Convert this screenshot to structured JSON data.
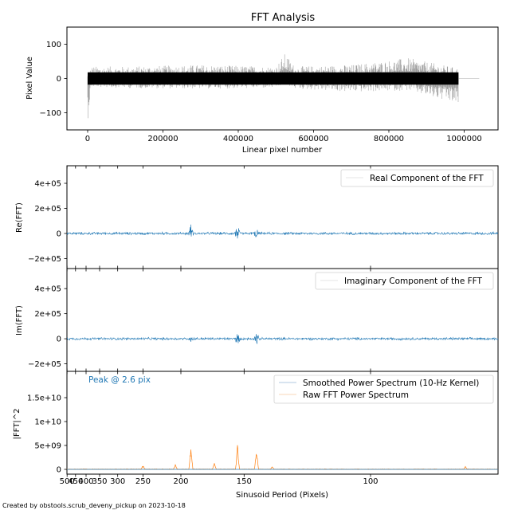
{
  "footer": "Created by obstools.scrub_deveny_pickup on 2023-10-18",
  "colors": {
    "trace": "#000000",
    "blue": "#1f77b4",
    "orange": "#ff7f0e",
    "legend_faint": "#f2c9a6"
  },
  "chart_data": [
    {
      "id": "pixel-panel",
      "type": "line",
      "title": "FFT Analysis",
      "xlabel": "Linear pixel number",
      "ylabel": "Pixel Value",
      "xlim": [
        -55000,
        1090000
      ],
      "ylim": [
        -150,
        150
      ],
      "xticks": [
        0,
        200000,
        400000,
        600000,
        800000,
        1000000
      ],
      "xtick_labels": [
        "0",
        "200000",
        "400000",
        "600000",
        "800000",
        "1000000"
      ],
      "yticks": [
        -100,
        0,
        100
      ],
      "ytick_labels": [
        "−100",
        "0",
        "100"
      ],
      "series": [
        {
          "color": "#000000",
          "x_range": [
            0,
            985000
          ],
          "envelope": [
            {
              "x": 0,
              "lo": -130,
              "hi": 10
            },
            {
              "x": 10000,
              "lo": -25,
              "hi": 35
            },
            {
              "x": 100000,
              "lo": -28,
              "hi": 35
            },
            {
              "x": 300000,
              "lo": -30,
              "hi": 40
            },
            {
              "x": 500000,
              "lo": -28,
              "hi": 35
            },
            {
              "x": 525000,
              "lo": -15,
              "hi": 75
            },
            {
              "x": 550000,
              "lo": -30,
              "hi": 35
            },
            {
              "x": 700000,
              "lo": -40,
              "hi": 40
            },
            {
              "x": 850000,
              "lo": -35,
              "hi": 60
            },
            {
              "x": 985000,
              "lo": -80,
              "hi": 30
            }
          ]
        },
        {
          "color": "#c8c8c8",
          "x_range": [
            985000,
            1040000
          ],
          "value": 0
        }
      ]
    },
    {
      "id": "real-panel",
      "type": "line",
      "ylabel": "Re(FFT)",
      "ylim": [
        -280000,
        540000
      ],
      "yticks": [
        -200000,
        0,
        200000,
        400000
      ],
      "ytick_labels": [
        "−2e+05",
        "0",
        "2e+05",
        "4e+05"
      ],
      "legend": [
        "Real Component of the FFT"
      ],
      "legend_position": "top-right",
      "series": [
        {
          "name": "Real Component of the FFT",
          "color": "#1f77b4",
          "spikes": [
            {
              "period": 190,
              "amp": 70000
            },
            {
              "period": 154,
              "amp": 60000
            },
            {
              "period": 143,
              "amp": 55000
            }
          ],
          "noise_amp": 8000
        }
      ]
    },
    {
      "id": "imag-panel",
      "type": "line",
      "ylabel": "Im(FFT)",
      "ylim": [
        -260000,
        560000
      ],
      "yticks": [
        -200000,
        0,
        200000,
        400000
      ],
      "ytick_labels": [
        "−2e+05",
        "0",
        "2e+05",
        "4e+05"
      ],
      "legend": [
        "Imaginary Component of the FFT"
      ],
      "legend_position": "top-right",
      "series": [
        {
          "name": "Imaginary Component of the FFT",
          "color": "#1f77b4",
          "spikes": [
            {
              "period": 190,
              "amp": 55000
            },
            {
              "period": 154,
              "amp": 45000
            },
            {
              "period": 143,
              "amp": 50000
            }
          ],
          "noise_amp": 8000
        }
      ]
    },
    {
      "id": "power-panel",
      "type": "line",
      "xlabel": "Sinusoid Period (Pixels)",
      "ylabel": "|FFT|^2",
      "ylim": [
        -1000000000,
        20500000000
      ],
      "yticks": [
        0,
        5000000000,
        10000000000,
        15000000000
      ],
      "ytick_labels": [
        "0",
        "5e+09",
        "1e+10",
        "1.5e+10"
      ],
      "xtick_periods": [
        500,
        450,
        400,
        350,
        300,
        250,
        200,
        150,
        100
      ],
      "xtick_labels": [
        "500",
        "450",
        "400",
        "350",
        "300",
        "250",
        "200",
        "150",
        "100"
      ],
      "annotation": "Peak @ 2.6 pix",
      "legend": [
        "Smoothed Power Spectrum (10-Hz Kernel)",
        "Raw FFT Power Spectrum"
      ],
      "legend_position": "top-right",
      "series": [
        {
          "name": "Smoothed Power Spectrum (10-Hz Kernel)",
          "color": "#1f77b4",
          "value": 0
        },
        {
          "name": "Raw FFT Power Spectrum",
          "color": "#ff7f0e",
          "peaks": [
            {
              "period": 250,
              "value": 900000000
            },
            {
              "period": 206,
              "value": 1100000000
            },
            {
              "period": 190,
              "value": 5200000000
            },
            {
              "period": 170,
              "value": 1300000000
            },
            {
              "period": 154,
              "value": 5300000000
            },
            {
              "period": 143,
              "value": 5000000000
            },
            {
              "period": 135,
              "value": 700000000
            },
            {
              "period": 80,
              "value": 600000000
            }
          ]
        }
      ]
    }
  ]
}
